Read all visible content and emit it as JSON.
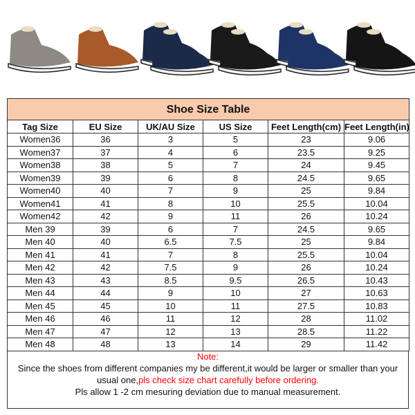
{
  "shoes": [
    {
      "name": "grey",
      "color": "#8c8a82"
    },
    {
      "name": "brown",
      "color": "#a85a2a"
    },
    {
      "name": "navy",
      "color": "#1c2a4a"
    },
    {
      "name": "black",
      "color": "#1a1a1a"
    },
    {
      "name": "blue",
      "color": "#1f3466"
    },
    {
      "name": "black-2",
      "color": "#151515"
    }
  ],
  "table": {
    "title": "Shoe Size Table",
    "headers": [
      "Tag Size",
      "EU Size",
      "UK/AU Size",
      "US Size",
      "Feet Length(cm)",
      "Feet Length(in)"
    ],
    "rows": [
      [
        "Women36",
        "36",
        "3",
        "5",
        "23",
        "9.06"
      ],
      [
        "Women37",
        "37",
        "4",
        "6",
        "23.5",
        "9.25"
      ],
      [
        "Women38",
        "38",
        "5",
        "7",
        "24",
        "9.45"
      ],
      [
        "Women39",
        "39",
        "6",
        "8",
        "24.5",
        "9.65"
      ],
      [
        "Women40",
        "40",
        "7",
        "9",
        "25",
        "9.84"
      ],
      [
        "Women41",
        "41",
        "8",
        "10",
        "25.5",
        "10.04"
      ],
      [
        "Women42",
        "42",
        "9",
        "11",
        "26",
        "10.24"
      ],
      [
        "Men 39",
        "39",
        "6",
        "7",
        "24.5",
        "9.65"
      ],
      [
        "Men 40",
        "40",
        "6.5",
        "7.5",
        "25",
        "9.84"
      ],
      [
        "Men 41",
        "41",
        "7",
        "8",
        "25.5",
        "10.04"
      ],
      [
        "Men 42",
        "42",
        "7.5",
        "9",
        "26",
        "10.24"
      ],
      [
        "Men 43",
        "43",
        "8.5",
        "9.5",
        "26.5",
        "10.43"
      ],
      [
        "Men 44",
        "44",
        "9",
        "10",
        "27",
        "10.63"
      ],
      [
        "Men 45",
        "45",
        "10",
        "11",
        "27.5",
        "10.83"
      ],
      [
        "Men 46",
        "46",
        "11",
        "12",
        "28",
        "11.02"
      ],
      [
        "Men 47",
        "47",
        "12",
        "13",
        "28.5",
        "11.22"
      ],
      [
        "Men 48",
        "48",
        "13",
        "14",
        "29",
        "11.42"
      ]
    ],
    "title_bg": "#f8cbad"
  },
  "note": {
    "label": "Note:",
    "line1": "Since the shoes from different companies my be different,it would be larger or smaller than your",
    "line2a": "usual one,",
    "line2b": "pls check size chart carefully before ordering.",
    "line3": "Pls allow 1 -2 cm mesuring deviation due to manual measurement.",
    "accent": "#ff0000"
  }
}
